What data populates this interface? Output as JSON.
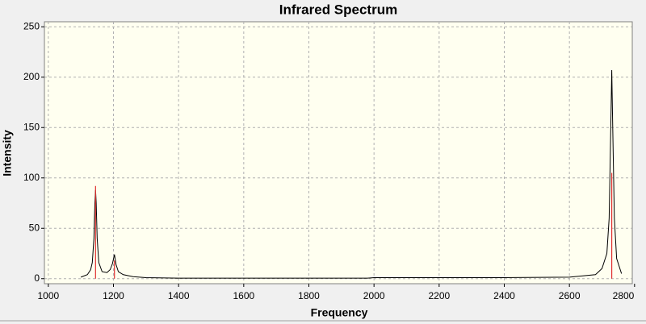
{
  "chart_data": {
    "type": "line",
    "title": "Infrared Spectrum",
    "x_label": "Frequency",
    "y_label": "Intensity",
    "xlim": [
      988,
      2793
    ],
    "ylim": [
      -5,
      255
    ],
    "xticks": [
      1000,
      1200,
      1400,
      1600,
      1800,
      2000,
      2200,
      2400,
      2600,
      2800
    ],
    "yticks": [
      0,
      50,
      100,
      150,
      200,
      250
    ],
    "grid": true,
    "series": [
      {
        "color": "#000000",
        "x": [
          1100,
          1120,
          1130,
          1135,
          1140,
          1143,
          1145,
          1147,
          1150,
          1155,
          1165,
          1180,
          1190,
          1197,
          1203,
          1208,
          1215,
          1230,
          1260,
          1300,
          1400,
          1980,
          2000,
          2400,
          2600,
          2680,
          2700,
          2715,
          2722,
          2727,
          2730,
          2733,
          2738,
          2745,
          2760
        ],
        "values": [
          1.5,
          4,
          9,
          16,
          40,
          75,
          88,
          75,
          40,
          16,
          7,
          6,
          9,
          15,
          24,
          14,
          7,
          4,
          2,
          1,
          0.5,
          0.5,
          1,
          1,
          1.5,
          4,
          10,
          25,
          60,
          150,
          207,
          150,
          60,
          20,
          5
        ]
      },
      {
        "type": "stick",
        "color": "#e03030",
        "x": [
          1145,
          1203,
          2730
        ],
        "values": [
          92,
          18,
          105
        ]
      }
    ]
  }
}
